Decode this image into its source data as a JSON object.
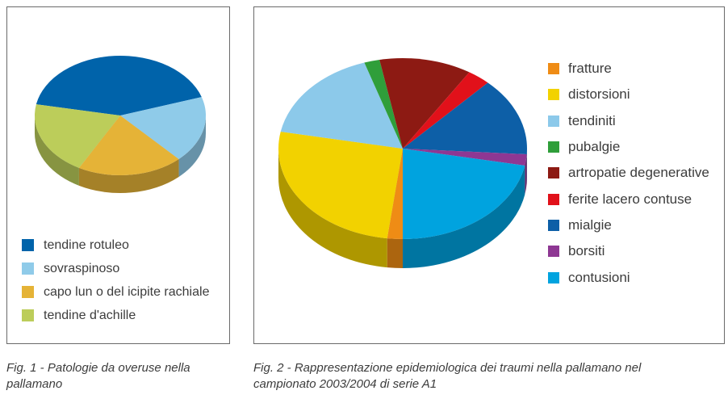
{
  "figures": [
    {
      "caption": "Fig. 1 - Patologie da overuse nella pallamano"
    },
    {
      "caption": "Fig. 2 - Rappresentazione epidemiologica dei traumi nella pallamano nel campionato 2003/2004 di serie A1"
    }
  ],
  "chart_data": [
    {
      "type": "pie",
      "title": "",
      "labels": [
        "tendine rotuleo",
        "sovraspinoso",
        "capo lun o del icipite rachiale",
        "tendine d'achille"
      ],
      "values": [
        42,
        18,
        20,
        20
      ],
      "colors": [
        "#0063aa",
        "#8fcbe9",
        "#e5b337",
        "#bccd5a"
      ],
      "legend": "bottom"
    },
    {
      "type": "pie",
      "title": "",
      "labels": [
        "fratture",
        "distorsioni",
        "tendiniti",
        "pubalgie",
        "artropatie degenerative",
        "ferite lacero contuse",
        "mialgie",
        "borsiti",
        "contusioni"
      ],
      "values": [
        2,
        26,
        17,
        2,
        12,
        3,
        14,
        2,
        22
      ],
      "colors": [
        "#ef8c15",
        "#f2d200",
        "#8cc9ea",
        "#2f9e3a",
        "#8d1a13",
        "#e1111a",
        "#0d5fa7",
        "#8e3793",
        "#00a3df"
      ],
      "legend": "right"
    }
  ]
}
